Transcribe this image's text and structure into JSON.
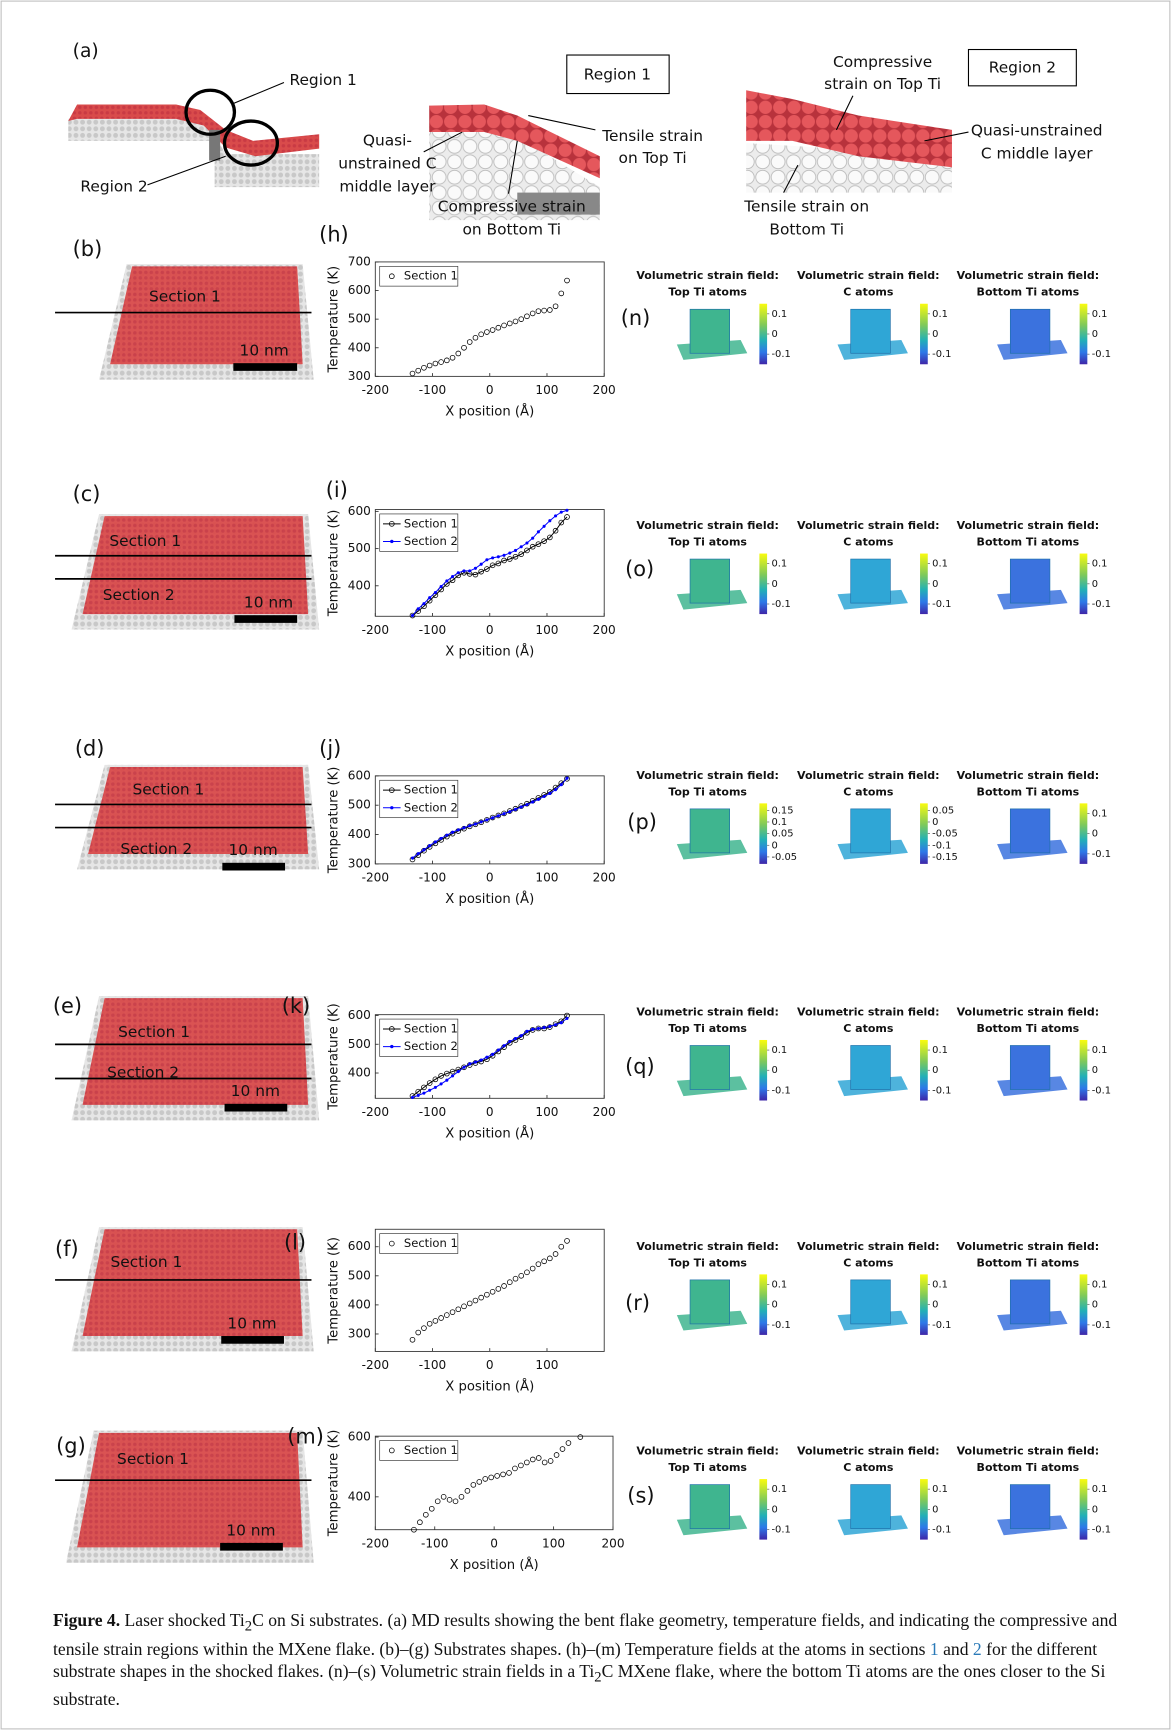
{
  "figure": {
    "panel_a": {
      "letter": "(a)",
      "overview_region1": "Region 1",
      "overview_region2": "Region 2",
      "box_region1": "Region 1",
      "box_region2": "Region 2",
      "r1_c_layer": [
        "Quasi-",
        "unstrained C",
        "middle layer"
      ],
      "r1_tensile": [
        "Tensile strain",
        "on Top Ti"
      ],
      "r1_compressive": [
        "Compressive strain",
        "on Bottom Ti"
      ],
      "r2_compressive": [
        "Compressive",
        "strain on Top Ti"
      ],
      "r2_c_layer": [
        "Quasi-unstrained",
        "C middle layer"
      ],
      "r2_tensile": [
        "Tensile strain on",
        "Bottom Ti"
      ]
    },
    "rows": [
      {
        "letter": "(b)",
        "sections": [
          "Section 1"
        ],
        "scale": "10 nm",
        "chart_letter": "(h)",
        "strain_letter": "(n)",
        "strain": [
          {
            "title": [
              "Volumetric strain field:",
              "Top Ti atoms"
            ],
            "ticks": [
              0.1,
              0,
              -0.1
            ],
            "lim": [
              -0.15,
              0.15
            ]
          },
          {
            "title": [
              "Volumetric strain field:",
              "C atoms"
            ],
            "ticks": [
              0.1,
              0,
              -0.1
            ],
            "lim": [
              -0.15,
              0.15
            ]
          },
          {
            "title": [
              "Volumetric strain field:",
              "Bottom Ti atoms"
            ],
            "ticks": [
              0.1,
              0,
              -0.1
            ],
            "lim": [
              -0.15,
              0.15
            ]
          }
        ]
      },
      {
        "letter": "(c)",
        "sections": [
          "Section 1",
          "Section 2"
        ],
        "scale": "10 nm",
        "chart_letter": "(i)",
        "strain_letter": "(o)",
        "strain": [
          {
            "title": [
              "Volumetric strain field:",
              "Top Ti atoms"
            ],
            "ticks": [
              0.1,
              0,
              -0.1
            ],
            "lim": [
              -0.15,
              0.15
            ]
          },
          {
            "title": [
              "Volumetric strain field:",
              "C atoms"
            ],
            "ticks": [
              0.1,
              0,
              -0.1
            ],
            "lim": [
              -0.15,
              0.15
            ]
          },
          {
            "title": [
              "Volumetric strain field:",
              "Bottom Ti atoms"
            ],
            "ticks": [
              0.1,
              0,
              -0.1
            ],
            "lim": [
              -0.15,
              0.15
            ]
          }
        ]
      },
      {
        "letter": "(d)",
        "sections": [
          "Section 1",
          "Section 2"
        ],
        "scale": "10 nm",
        "chart_letter": "(j)",
        "strain_letter": "(p)",
        "strain": [
          {
            "title": [
              "Volumetric strain field:",
              "Top Ti atoms"
            ],
            "ticks": [
              0.15,
              0.1,
              0.05,
              0,
              -0.05
            ],
            "lim": [
              -0.08,
              0.18
            ]
          },
          {
            "title": [
              "Volumetric strain field:",
              "C atoms"
            ],
            "ticks": [
              0.05,
              0,
              -0.05,
              -0.1,
              -0.15
            ],
            "lim": [
              -0.18,
              0.08
            ]
          },
          {
            "title": [
              "Volumetric strain field:",
              "Bottom Ti atoms"
            ],
            "ticks": [
              0.1,
              0,
              -0.1
            ],
            "lim": [
              -0.15,
              0.15
            ]
          }
        ]
      },
      {
        "letter": "(e)",
        "sections": [
          "Section 1",
          "Section 2"
        ],
        "scale": "10 nm",
        "chart_letter": "(k)",
        "strain_letter": "(q)",
        "strain": [
          {
            "title": [
              "Volumetric strain field:",
              "Top Ti atoms"
            ],
            "ticks": [
              0.1,
              0,
              -0.1
            ],
            "lim": [
              -0.15,
              0.15
            ]
          },
          {
            "title": [
              "Volumetric strain field:",
              "C atoms"
            ],
            "ticks": [
              0.1,
              0,
              -0.1
            ],
            "lim": [
              -0.15,
              0.15
            ]
          },
          {
            "title": [
              "Volumetric strain field:",
              "Bottom Ti atoms"
            ],
            "ticks": [
              0.1,
              0,
              -0.1
            ],
            "lim": [
              -0.15,
              0.15
            ]
          }
        ]
      },
      {
        "letter": "(f)",
        "sections": [
          "Section 1"
        ],
        "scale": "10 nm",
        "chart_letter": "(l)",
        "strain_letter": "(r)",
        "strain": [
          {
            "title": [
              "Volumetric strain field:",
              "Top Ti atoms"
            ],
            "ticks": [
              0.1,
              0,
              -0.1
            ],
            "lim": [
              -0.15,
              0.15
            ]
          },
          {
            "title": [
              "Volumetric strain field:",
              "C atoms"
            ],
            "ticks": [
              0.1,
              0,
              -0.1
            ],
            "lim": [
              -0.15,
              0.15
            ]
          },
          {
            "title": [
              "Volumetric strain field:",
              "Bottom Ti atoms"
            ],
            "ticks": [
              0.1,
              0,
              -0.1
            ],
            "lim": [
              -0.15,
              0.15
            ]
          }
        ]
      },
      {
        "letter": "(g)",
        "sections": [
          "Section 1"
        ],
        "scale": "10 nm",
        "chart_letter": "(m)",
        "strain_letter": "(s)",
        "strain": [
          {
            "title": [
              "Volumetric strain field:",
              "Top Ti atoms"
            ],
            "ticks": [
              0.1,
              0,
              -0.1
            ],
            "lim": [
              -0.15,
              0.15
            ]
          },
          {
            "title": [
              "Volumetric strain field:",
              "C atoms"
            ],
            "ticks": [
              0.1,
              0,
              -0.1
            ],
            "lim": [
              -0.15,
              0.15
            ]
          },
          {
            "title": [
              "Volumetric strain field:",
              "Bottom Ti atoms"
            ],
            "ticks": [
              0.1,
              0,
              -0.1
            ],
            "lim": [
              -0.15,
              0.15
            ]
          }
        ]
      }
    ],
    "caption": [
      "Figure 4.",
      " Laser shocked Ti",
      "2",
      "C on Si substrates. (a) MD results showing the bent flake geometry, temperature fields, and indicating the compressive and tensile strain regions within the MXene flake. (b)–(g) Substrates shapes. (h)–(m) Temperature fields at the atoms in sections ",
      "1",
      " and ",
      "2",
      " for the different substrate shapes in the shocked flakes. (n)–(s) Volumetric strain fields in a Ti",
      "2",
      "C MXene flake, where the bottom Ti atoms are the ones closer to the Si substrate."
    ]
  },
  "chart_data": [
    {
      "type": "line",
      "xlabel": "X position (Å)",
      "ylabel": "Temperature (K)",
      "legend": "upper left",
      "xlim": [
        -200,
        200
      ],
      "xticks": [
        -200,
        -100,
        0,
        100,
        200
      ],
      "ylim": [
        300,
        700
      ],
      "yticks": [
        300,
        400,
        500,
        600,
        700
      ],
      "x": [
        -135,
        -125,
        -115,
        -105,
        -95,
        -85,
        -75,
        -65,
        -55,
        -45,
        -35,
        -25,
        -15,
        -5,
        5,
        15,
        25,
        35,
        45,
        55,
        65,
        75,
        85,
        95,
        105,
        115,
        125,
        135
      ],
      "series": [
        {
          "name": "Section 1",
          "color": "#000000",
          "marker": "o",
          "line": false,
          "values": [
            310,
            320,
            330,
            338,
            345,
            350,
            356,
            365,
            380,
            400,
            420,
            435,
            447,
            455,
            462,
            470,
            478,
            485,
            492,
            500,
            510,
            520,
            528,
            530,
            532,
            545,
            590,
            635
          ]
        }
      ]
    },
    {
      "type": "line",
      "xlabel": "X position (Å)",
      "ylabel": "Temperature (K)",
      "legend": "upper left",
      "xlim": [
        -200,
        200
      ],
      "xticks": [
        -200,
        -100,
        0,
        100,
        200
      ],
      "ylim": [
        318,
        605
      ],
      "yticks": [
        400,
        500,
        600
      ],
      "x": [
        -135,
        -125,
        -115,
        -105,
        -95,
        -85,
        -75,
        -65,
        -55,
        -45,
        -35,
        -25,
        -15,
        -5,
        5,
        15,
        25,
        35,
        45,
        55,
        65,
        75,
        85,
        95,
        105,
        115,
        125,
        135
      ],
      "series": [
        {
          "name": "Section 1",
          "color": "#000000",
          "marker": "o",
          "line": true,
          "values": [
            320,
            332,
            345,
            360,
            375,
            390,
            405,
            415,
            428,
            435,
            432,
            430,
            438,
            445,
            455,
            460,
            468,
            472,
            478,
            485,
            495,
            505,
            512,
            520,
            530,
            548,
            570,
            585
          ]
        },
        {
          "name": "Section 2",
          "color": "#0000ff",
          "marker": ".",
          "line": true,
          "values": [
            320,
            338,
            352,
            368,
            382,
            398,
            413,
            425,
            435,
            440,
            440,
            447,
            458,
            470,
            475,
            478,
            482,
            488,
            495,
            505,
            515,
            528,
            545,
            560,
            575,
            588,
            598,
            603
          ]
        }
      ]
    },
    {
      "type": "line",
      "xlabel": "X position (Å)",
      "ylabel": "Temperature (K)",
      "legend": "upper left",
      "xlim": [
        -200,
        200
      ],
      "xticks": [
        -200,
        -100,
        0,
        100,
        200
      ],
      "ylim": [
        300,
        600
      ],
      "yticks": [
        300,
        400,
        500,
        600
      ],
      "x": [
        -135,
        -125,
        -115,
        -105,
        -95,
        -85,
        -75,
        -65,
        -55,
        -45,
        -35,
        -25,
        -15,
        -5,
        5,
        15,
        25,
        35,
        45,
        55,
        65,
        75,
        85,
        95,
        105,
        115,
        125,
        135
      ],
      "series": [
        {
          "name": "Section 1",
          "color": "#000000",
          "marker": "o",
          "line": true,
          "values": [
            315,
            330,
            345,
            358,
            370,
            382,
            393,
            403,
            412,
            420,
            428,
            435,
            442,
            450,
            458,
            465,
            472,
            480,
            488,
            497,
            505,
            515,
            525,
            535,
            545,
            560,
            575,
            590
          ]
        },
        {
          "name": "Section 2",
          "color": "#0000ff",
          "marker": ".",
          "line": true,
          "values": [
            320,
            335,
            348,
            362,
            375,
            387,
            398,
            408,
            416,
            423,
            430,
            436,
            443,
            450,
            457,
            464,
            471,
            478,
            486,
            494,
            502,
            511,
            520,
            530,
            540,
            553,
            570,
            592
          ]
        }
      ]
    },
    {
      "type": "line",
      "xlabel": "X position (Å)",
      "ylabel": "Temperature (K)",
      "legend": "upper left",
      "xlim": [
        -200,
        200
      ],
      "xticks": [
        -200,
        -100,
        0,
        100,
        200
      ],
      "ylim": [
        312,
        603
      ],
      "yticks": [
        400,
        500,
        600
      ],
      "x": [
        -135,
        -125,
        -115,
        -105,
        -95,
        -85,
        -75,
        -65,
        -55,
        -45,
        -35,
        -25,
        -15,
        -5,
        5,
        15,
        25,
        35,
        45,
        55,
        65,
        75,
        85,
        95,
        105,
        115,
        125,
        135
      ],
      "series": [
        {
          "name": "Section 1",
          "color": "#000000",
          "marker": "o",
          "line": true,
          "values": [
            320,
            335,
            350,
            365,
            378,
            390,
            398,
            405,
            412,
            420,
            428,
            435,
            440,
            448,
            460,
            475,
            490,
            505,
            515,
            525,
            540,
            550,
            555,
            555,
            560,
            570,
            580,
            600
          ]
        },
        {
          "name": "Section 2",
          "color": "#0000ff",
          "marker": ".",
          "line": true,
          "values": [
            315,
            322,
            330,
            340,
            350,
            362,
            375,
            390,
            405,
            420,
            432,
            438,
            445,
            455,
            465,
            480,
            495,
            510,
            520,
            530,
            545,
            552,
            555,
            558,
            562,
            568,
            575,
            590
          ]
        }
      ]
    },
    {
      "type": "line",
      "xlabel": "X position (Å)",
      "ylabel": "Temperature (K)",
      "legend": "upper left",
      "xlim": [
        -200,
        200
      ],
      "xticks": [
        -200,
        -100,
        0,
        100
      ],
      "ylim": [
        240,
        660
      ],
      "yticks": [
        300,
        400,
        500,
        600
      ],
      "x": [
        -135,
        -125,
        -115,
        -105,
        -95,
        -85,
        -75,
        -65,
        -55,
        -45,
        -35,
        -25,
        -15,
        -5,
        5,
        15,
        25,
        35,
        45,
        55,
        65,
        75,
        85,
        95,
        105,
        115,
        125,
        135
      ],
      "series": [
        {
          "name": "Section 1",
          "color": "#000000",
          "marker": "o",
          "line": false,
          "values": [
            280,
            305,
            320,
            335,
            345,
            355,
            365,
            375,
            385,
            395,
            405,
            415,
            425,
            435,
            445,
            455,
            465,
            478,
            490,
            500,
            512,
            525,
            540,
            550,
            560,
            575,
            600,
            620
          ]
        }
      ]
    },
    {
      "type": "line",
      "xlabel": "X position (Å)",
      "ylabel": "Temperature (K)",
      "legend": "upper left",
      "xlim": [
        -200,
        200
      ],
      "xticks": [
        -200,
        -100,
        0,
        100,
        200
      ],
      "ylim": [
        290,
        603
      ],
      "yticks": [
        400,
        600
      ],
      "x": [
        -135,
        -125,
        -115,
        -105,
        -95,
        -85,
        -75,
        -65,
        -55,
        -45,
        -35,
        -25,
        -15,
        -5,
        5,
        15,
        25,
        35,
        45,
        55,
        65,
        75,
        85,
        95,
        105,
        115,
        125,
        145
      ],
      "series": [
        {
          "name": "Section 1",
          "color": "#000000",
          "marker": "o",
          "line": false,
          "values": [
            290,
            315,
            340,
            360,
            385,
            400,
            390,
            385,
            400,
            420,
            440,
            450,
            460,
            465,
            470,
            475,
            480,
            495,
            505,
            515,
            525,
            530,
            515,
            520,
            540,
            560,
            580,
            600
          ]
        }
      ]
    }
  ]
}
